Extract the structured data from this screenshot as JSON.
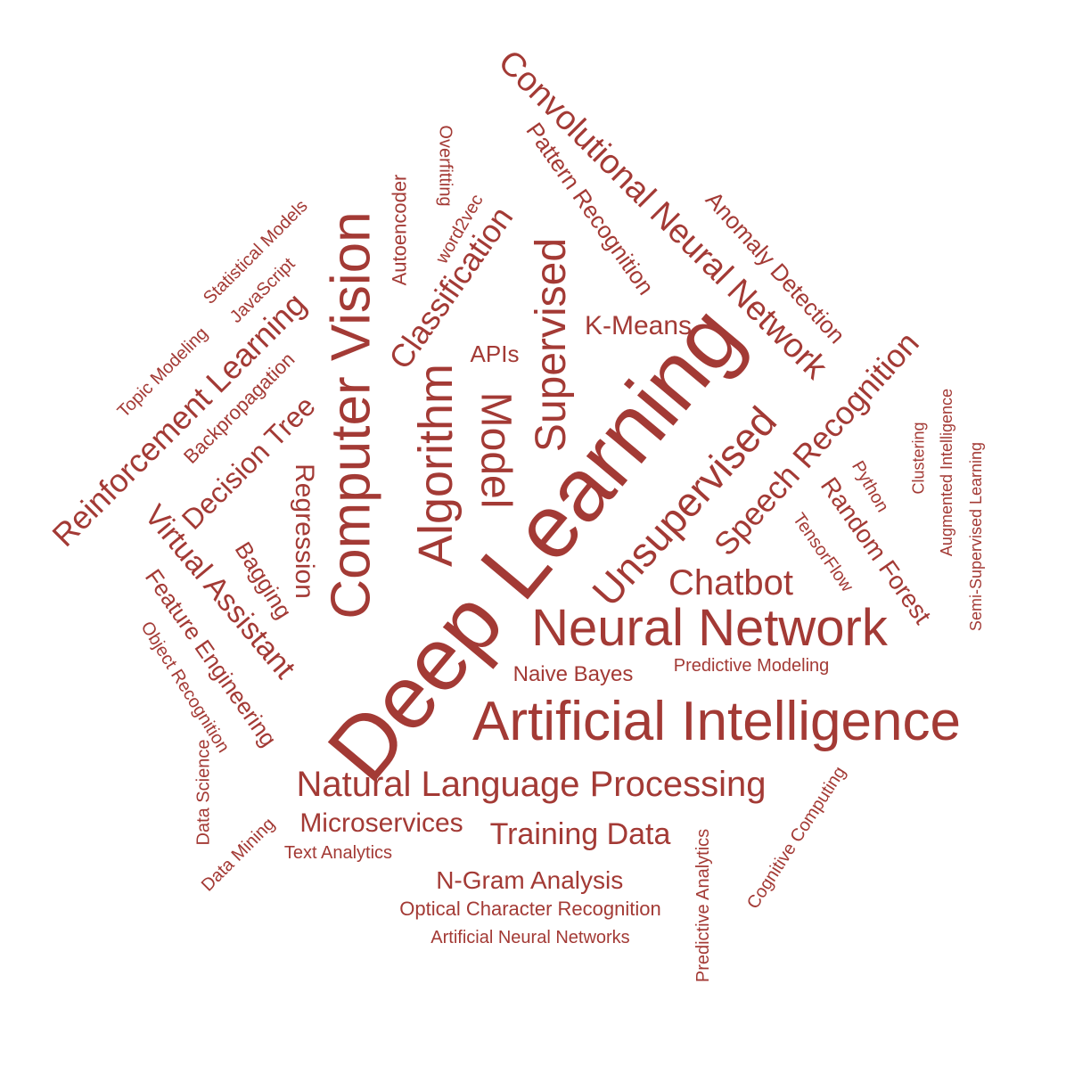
{
  "color": "#a33a35",
  "words": [
    "Deep Learning",
    "Artificial Intelligence",
    "Computer Vision",
    "Neural Network",
    "Natural Language Processing",
    "Algorithm",
    "Unsupervised",
    "Convolutional Neural Network",
    "Supervised",
    "Model",
    "Speech Recognition",
    "Reinforcement Learning",
    "Classification",
    "Chatbot",
    "Virtual Assistant",
    "Training Data",
    "Microservices",
    "N-Gram Analysis",
    "Decision Tree",
    "Random Forest",
    "Pattern Recognition",
    "Feature Engineering",
    "K-Means",
    "Regression",
    "Naive Bayes",
    "Anomaly Detection",
    "Predictive Modeling",
    "Optical Character Recognition",
    "Artificial Neural Networks",
    "Bagging",
    "APIs",
    "Autoencoder",
    "Backpropagation",
    "Statistical Models",
    "JavaScript",
    "Topic Modeling",
    "word2vec",
    "Overfitting",
    "Object Recognition",
    "Data Science",
    "Data Mining",
    "Text Analytics",
    "Predictive Analytics",
    "Cognitive Computing",
    "TensorFlow",
    "Python",
    "Clustering",
    "Augmented Intelligence",
    "Semi-Supervised Learning"
  ]
}
